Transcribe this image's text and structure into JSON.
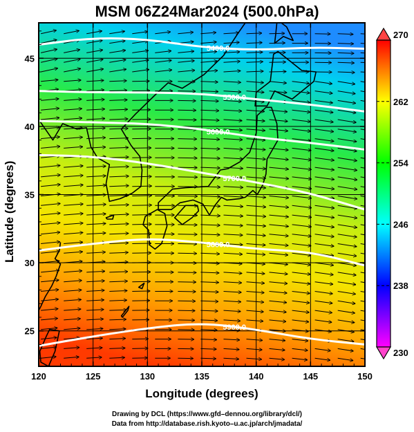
{
  "title": "MSM 06Z24Mar2024 (500.0hPa)",
  "credit_line1": "Drawing by DCL (https://www.gfd–dennou.org/library/dcl/)",
  "credit_line2": "Data from http://database.rish.kyoto–u.ac.jp/arch/jmadata/",
  "chart_data": {
    "type": "heatmap",
    "title": "MSM 06Z24Mar2024 (500.0hPa)",
    "xlabel": "Longitude (degrees)",
    "ylabel": "Latitude  (degrees)",
    "xlim": [
      120,
      150
    ],
    "ylim": [
      22.4,
      47.6
    ],
    "x_ticks": [
      "120",
      "125",
      "130",
      "135",
      "140",
      "145",
      "150"
    ],
    "y_ticks": [
      "25",
      "30",
      "35",
      "40",
      "45"
    ],
    "grid": true,
    "colorbar": {
      "min": 230,
      "max": 270,
      "ticks": [
        "270",
        "262",
        "254",
        "246",
        "238",
        "230"
      ],
      "colors": [
        "#ff00ff",
        "#0000ff",
        "#00ffff",
        "#00ff00",
        "#ffff00",
        "#ff0000"
      ]
    },
    "contours": [
      {
        "label": "5400.0",
        "points": [
          [
            120,
            46.0
          ],
          [
            125,
            46.5
          ],
          [
            130,
            46.4
          ],
          [
            135,
            45.8
          ],
          [
            140,
            45.6
          ],
          [
            145,
            45.8
          ],
          [
            150,
            45.7
          ]
        ]
      },
      {
        "label": "5500.0",
        "points": [
          [
            120,
            42.6
          ],
          [
            125,
            42.5
          ],
          [
            130,
            42.5
          ],
          [
            135,
            42.4
          ],
          [
            140,
            42.0
          ],
          [
            145,
            41.6
          ],
          [
            150,
            41.1
          ]
        ]
      },
      {
        "label": "5600.0",
        "points": [
          [
            120,
            40.4
          ],
          [
            125,
            40.3
          ],
          [
            130,
            40.2
          ],
          [
            135,
            39.8
          ],
          [
            140,
            39.2
          ],
          [
            145,
            38.8
          ],
          [
            150,
            38.3
          ]
        ]
      },
      {
        "label": "5700.0",
        "points": [
          [
            120,
            37.9
          ],
          [
            125,
            37.8
          ],
          [
            130,
            37.3
          ],
          [
            135,
            36.6
          ],
          [
            140,
            35.9
          ],
          [
            145,
            35.1
          ],
          [
            150,
            33.9
          ]
        ]
      },
      {
        "label": "5800.0",
        "points": [
          [
            120,
            30.9
          ],
          [
            125,
            31.4
          ],
          [
            130,
            31.8
          ],
          [
            135,
            31.5
          ],
          [
            140,
            31.0
          ],
          [
            145,
            30.8
          ],
          [
            150,
            29.8
          ]
        ]
      },
      {
        "label": "5900.0",
        "points": [
          [
            120,
            23.9
          ],
          [
            125,
            24.6
          ],
          [
            130,
            25.2
          ],
          [
            135,
            25.6
          ],
          [
            140,
            25.1
          ],
          [
            145,
            24.4
          ],
          [
            150,
            24.0
          ]
        ]
      }
    ]
  }
}
